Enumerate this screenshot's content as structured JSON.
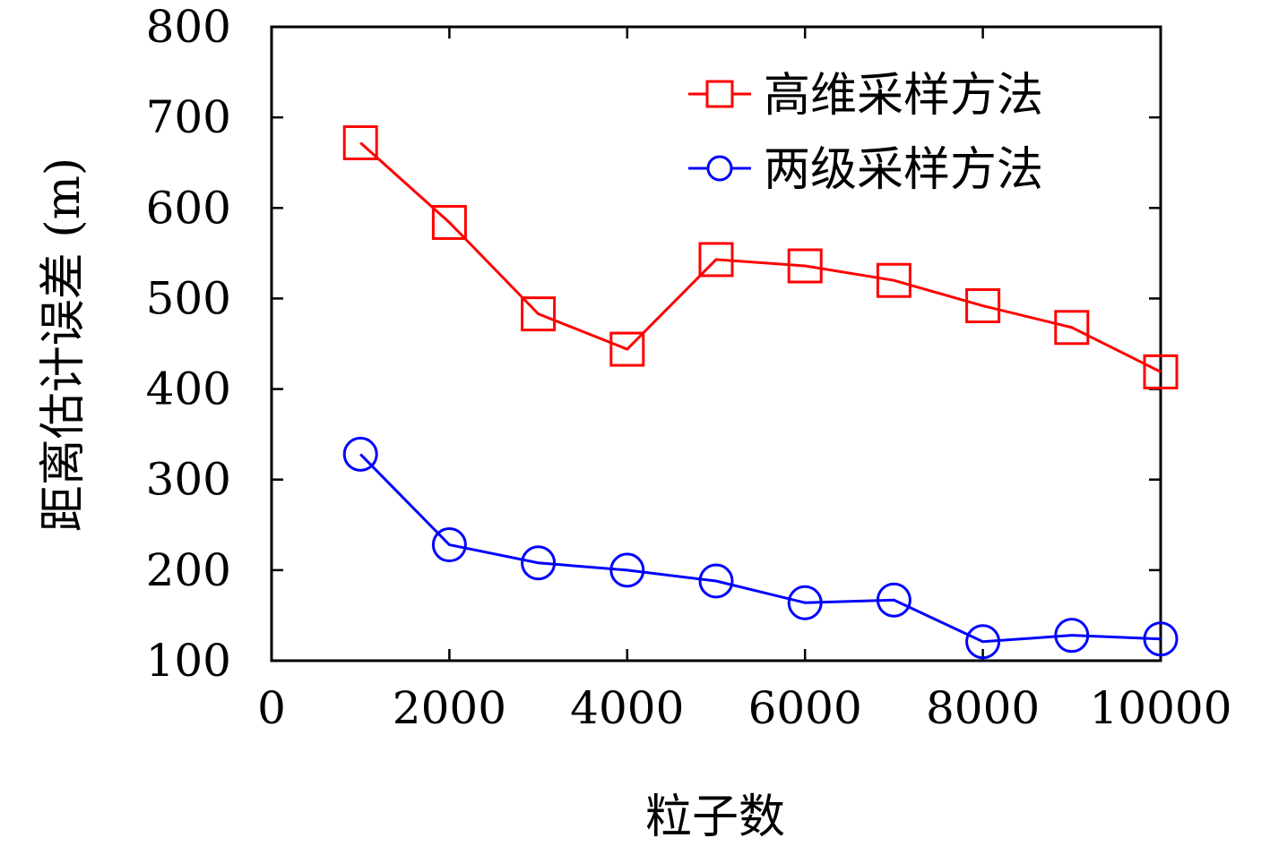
{
  "chart_data": {
    "type": "line",
    "title": "",
    "xlabel": "粒子数",
    "ylabel": "距离估计误差 (m)",
    "xlim": [
      0,
      10000
    ],
    "ylim": [
      100,
      800
    ],
    "xticks": [
      0,
      2000,
      4000,
      6000,
      8000,
      10000
    ],
    "yticks": [
      100,
      200,
      300,
      400,
      500,
      600,
      700,
      800
    ],
    "grid": false,
    "legend_position": "top-right",
    "x": [
      1000,
      2000,
      3000,
      4000,
      5000,
      6000,
      7000,
      8000,
      9000,
      10000
    ],
    "series": [
      {
        "name": "高维采样方法",
        "color": "#ff0000",
        "marker": "square",
        "values": [
          672,
          584,
          483,
          444,
          543,
          536,
          520,
          492,
          468,
          419
        ]
      },
      {
        "name": "两级采样方法",
        "color": "#0000ff",
        "marker": "circle",
        "values": [
          328,
          228,
          208,
          200,
          188,
          164,
          167,
          121,
          128,
          124
        ]
      }
    ]
  }
}
